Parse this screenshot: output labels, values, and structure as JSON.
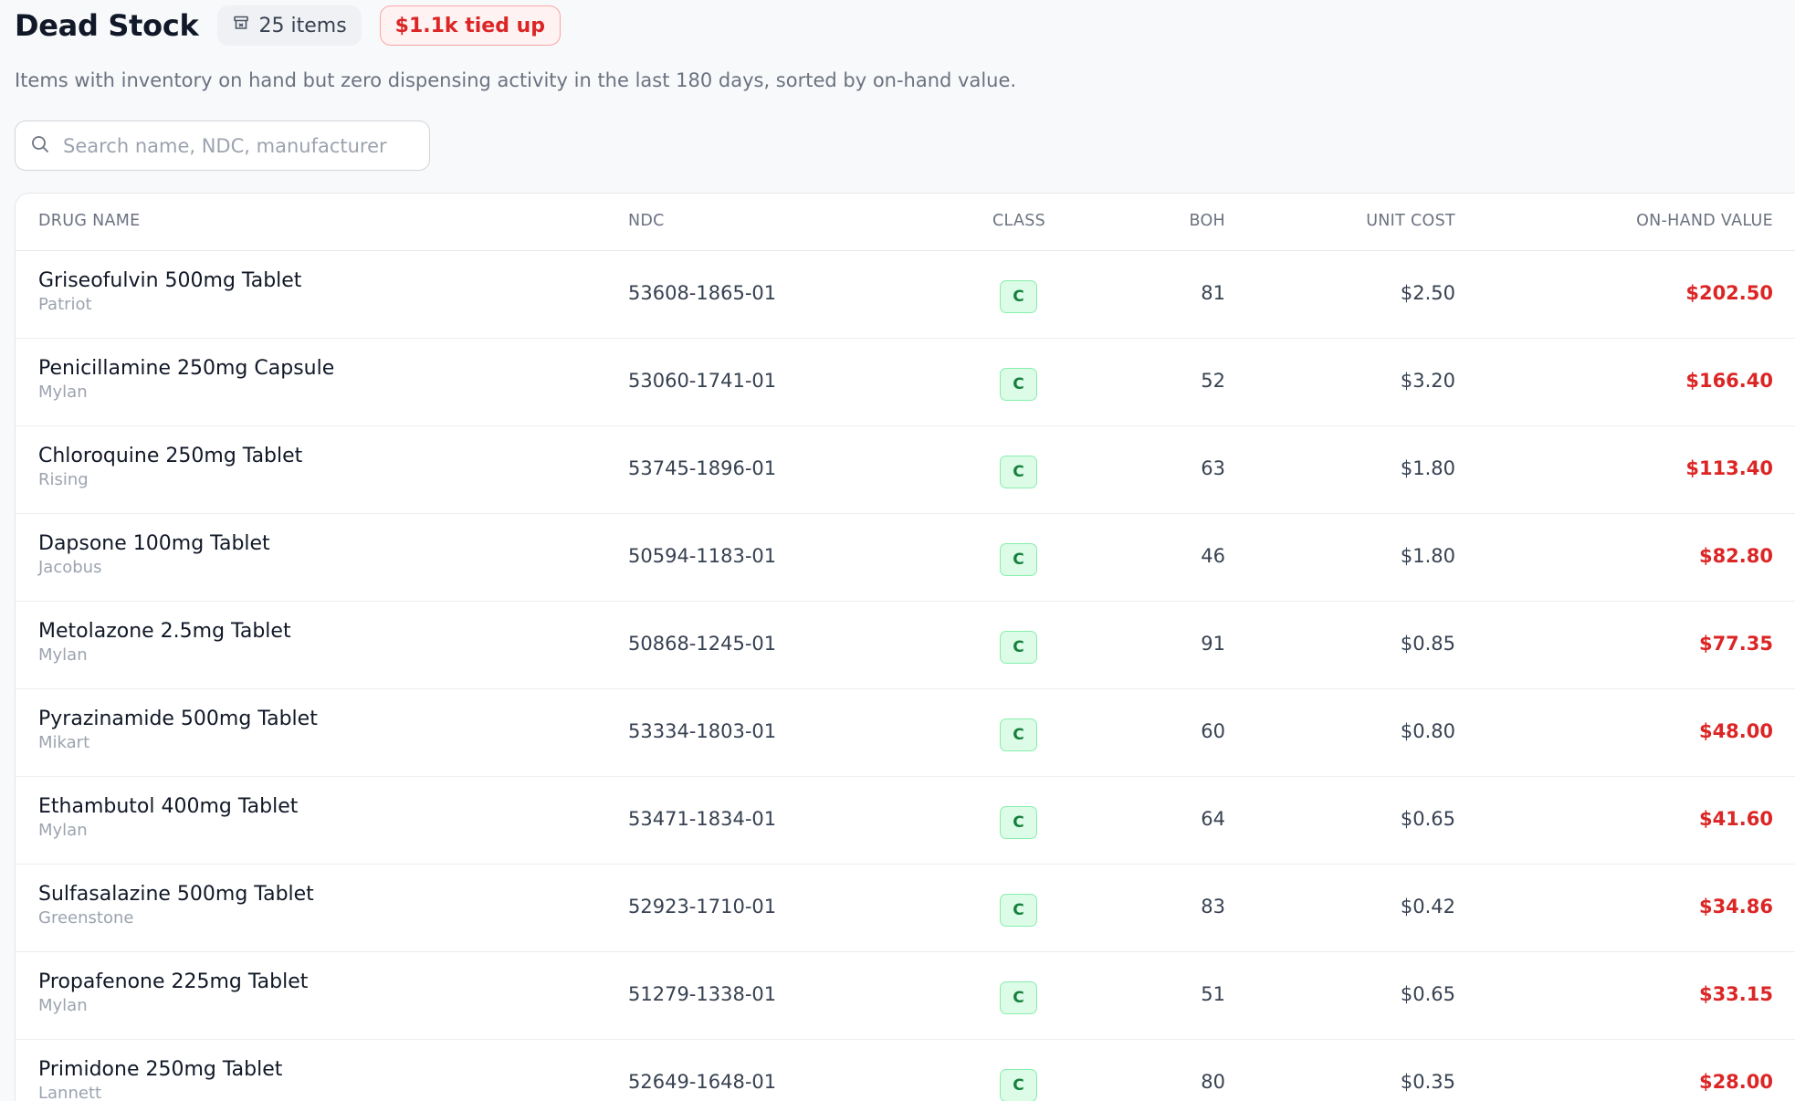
{
  "header": {
    "title": "Dead Stock",
    "item_count": "25 items",
    "tied_up": "$1.1k tied up"
  },
  "subtitle": "Items with inventory on hand but zero dispensing activity in the last 180 days, sorted by on-hand value.",
  "search": {
    "placeholder": "Search name, NDC, manufacturer",
    "value": ""
  },
  "table": {
    "columns": {
      "drug_name": "DRUG NAME",
      "ndc": "NDC",
      "class": "CLASS",
      "boh": "BOH",
      "unit_cost": "UNIT COST",
      "on_hand_value": "ON-HAND VALUE"
    },
    "rows": [
      {
        "name": "Griseofulvin 500mg Tablet",
        "manufacturer": "Patriot",
        "ndc": "53608-1865-01",
        "class": "C",
        "boh": "81",
        "unit_cost": "$2.50",
        "value": "$202.50"
      },
      {
        "name": "Penicillamine 250mg Capsule",
        "manufacturer": "Mylan",
        "ndc": "53060-1741-01",
        "class": "C",
        "boh": "52",
        "unit_cost": "$3.20",
        "value": "$166.40"
      },
      {
        "name": "Chloroquine 250mg Tablet",
        "manufacturer": "Rising",
        "ndc": "53745-1896-01",
        "class": "C",
        "boh": "63",
        "unit_cost": "$1.80",
        "value": "$113.40"
      },
      {
        "name": "Dapsone 100mg Tablet",
        "manufacturer": "Jacobus",
        "ndc": "50594-1183-01",
        "class": "C",
        "boh": "46",
        "unit_cost": "$1.80",
        "value": "$82.80"
      },
      {
        "name": "Metolazone 2.5mg Tablet",
        "manufacturer": "Mylan",
        "ndc": "50868-1245-01",
        "class": "C",
        "boh": "91",
        "unit_cost": "$0.85",
        "value": "$77.35"
      },
      {
        "name": "Pyrazinamide 500mg Tablet",
        "manufacturer": "Mikart",
        "ndc": "53334-1803-01",
        "class": "C",
        "boh": "60",
        "unit_cost": "$0.80",
        "value": "$48.00"
      },
      {
        "name": "Ethambutol 400mg Tablet",
        "manufacturer": "Mylan",
        "ndc": "53471-1834-01",
        "class": "C",
        "boh": "64",
        "unit_cost": "$0.65",
        "value": "$41.60"
      },
      {
        "name": "Sulfasalazine 500mg Tablet",
        "manufacturer": "Greenstone",
        "ndc": "52923-1710-01",
        "class": "C",
        "boh": "83",
        "unit_cost": "$0.42",
        "value": "$34.86"
      },
      {
        "name": "Propafenone 225mg Tablet",
        "manufacturer": "Mylan",
        "ndc": "51279-1338-01",
        "class": "C",
        "boh": "51",
        "unit_cost": "$0.65",
        "value": "$33.15"
      },
      {
        "name": "Primidone 250mg Tablet",
        "manufacturer": "Lannett",
        "ndc": "52649-1648-01",
        "class": "C",
        "boh": "80",
        "unit_cost": "$0.35",
        "value": "$28.00"
      }
    ]
  },
  "icons": {
    "badge": "archive-box-icon",
    "search": "search-icon"
  },
  "colors": {
    "accent_red": "#dc2626",
    "class_green": "#15803d",
    "class_green_bg": "#dcfce7"
  }
}
